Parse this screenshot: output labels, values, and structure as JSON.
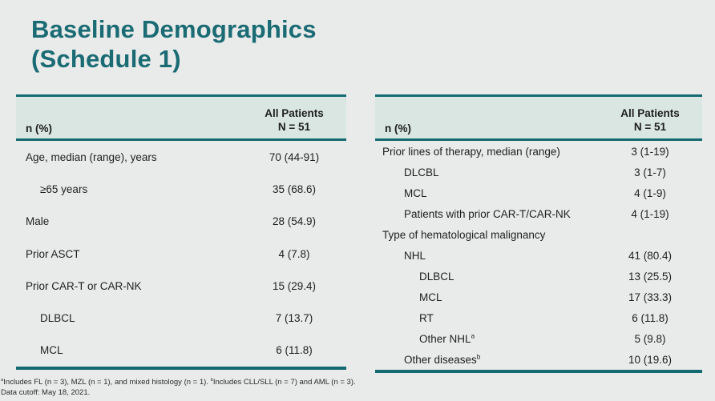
{
  "title": {
    "line1": "Baseline Demographics",
    "line2": "(Schedule 1)"
  },
  "colors": {
    "teal_border": "#156a72",
    "title_text": "#1a6b74",
    "header_background": "#d9e6e2",
    "slide_background": "#e9ebea"
  },
  "tables": [
    {
      "name": "baseline-demographics-left",
      "header": {
        "label": "n (%)",
        "value_line1": "All Patients",
        "value_line2": "N = 51"
      },
      "rows": [
        {
          "label": "Age, median (range), years",
          "value": "70 (44-91)",
          "indent": 0
        },
        {
          "label": "≥65 years",
          "value": "35 (68.6)",
          "indent": 1
        },
        {
          "label": "Male",
          "value": "28 (54.9)",
          "indent": 0
        },
        {
          "label": "Prior ASCT",
          "value": "4 (7.8)",
          "indent": 0
        },
        {
          "label": "Prior CAR-T or CAR-NK",
          "value": "15 (29.4)",
          "indent": 0
        },
        {
          "label": "DLBCL",
          "value": "7 (13.7)",
          "indent": 1
        },
        {
          "label": "MCL",
          "value": "6 (11.8)",
          "indent": 1
        }
      ]
    },
    {
      "name": "baseline-demographics-right",
      "header": {
        "label": "n (%)",
        "value_line1": "All Patients",
        "value_line2": "N = 51"
      },
      "rows": [
        {
          "label": "Prior lines of therapy, median (range)",
          "value": "3 (1-19)",
          "indent": 0
        },
        {
          "label": "DLCBL",
          "value": "3 (1-7)",
          "indent": 1
        },
        {
          "label": "MCL",
          "value": "4 (1-9)",
          "indent": 1
        },
        {
          "label": "Patients with prior CAR-T/CAR-NK",
          "value": "4 (1-19)",
          "indent": 1
        },
        {
          "label": "Type of hematological malignancy",
          "value": "",
          "indent": 0
        },
        {
          "label": "NHL",
          "value": "41 (80.4)",
          "indent": 1
        },
        {
          "label": "DLBCL",
          "value": "13 (25.5)",
          "indent": 2
        },
        {
          "label": "MCL",
          "value": "17 (33.3)",
          "indent": 2
        },
        {
          "label": "RT",
          "value": "6 (11.8)",
          "indent": 2
        },
        {
          "label": "Other NHL",
          "sup": "a",
          "value": "5 (9.8)",
          "indent": 2
        },
        {
          "label": "Other diseases",
          "sup": "b",
          "value": "10 (19.6)",
          "indent": 1
        }
      ]
    }
  ],
  "footnotes": {
    "line1_parts": [
      {
        "sup": "a",
        "text": "Includes FL (n = 3), MZL (n = 1), and mixed histology (n = 1). "
      },
      {
        "sup": "b",
        "text": "Includes CLL/SLL (n = 7) and AML (n = 3)."
      }
    ],
    "line2": "Data cutoff: May 18, 2021."
  }
}
